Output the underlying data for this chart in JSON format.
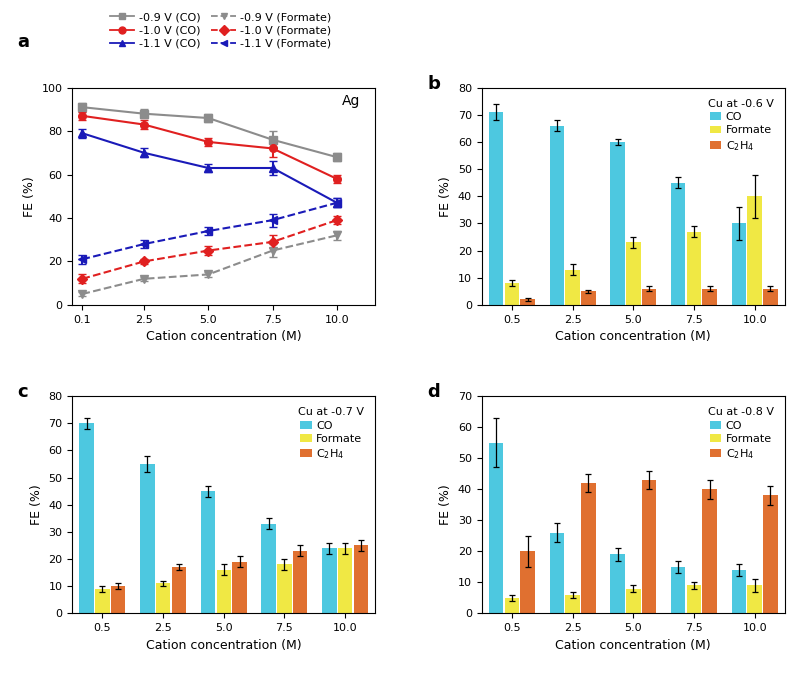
{
  "panel_a": {
    "x": [
      0.1,
      2.5,
      5.0,
      7.5,
      10.0
    ],
    "co_09": [
      91,
      88,
      86,
      76,
      68
    ],
    "co_10": [
      87,
      83,
      75,
      72,
      58
    ],
    "co_11": [
      79,
      70,
      63,
      63,
      47
    ],
    "formate_09": [
      5,
      12,
      14,
      25,
      32
    ],
    "formate_10": [
      12,
      20,
      25,
      29,
      39
    ],
    "formate_11": [
      21,
      28,
      34,
      39,
      47
    ],
    "co_09_err": [
      2,
      2,
      2,
      4,
      2
    ],
    "co_10_err": [
      2,
      2,
      2,
      4,
      2
    ],
    "co_11_err": [
      2,
      2,
      2,
      3,
      2
    ],
    "formate_09_err": [
      1,
      1,
      1,
      3,
      2
    ],
    "formate_10_err": [
      2,
      1,
      2,
      3,
      2
    ],
    "formate_11_err": [
      2,
      2,
      2,
      3,
      2
    ],
    "ylabel": "FE (%)",
    "xlabel": "Cation concentration (M)",
    "ylim": [
      0,
      100
    ],
    "xlim": [
      -0.3,
      11.5
    ],
    "xticks": [
      0.1,
      2.5,
      5.0,
      7.5,
      10.0
    ],
    "xticklabels": [
      "0.1",
      "2.5",
      "5.0",
      "7.5",
      "10.0"
    ],
    "yticks": [
      0,
      20,
      40,
      60,
      80,
      100
    ],
    "label": "a",
    "annotation": "Ag"
  },
  "panel_b": {
    "x_labels": [
      "0.5",
      "2.5",
      "5.0",
      "7.5",
      "10.0"
    ],
    "CO": [
      71,
      66,
      60,
      45,
      30
    ],
    "Formate": [
      8,
      13,
      23,
      27,
      40
    ],
    "C2H4": [
      2,
      5,
      6,
      6,
      6
    ],
    "CO_err": [
      3,
      2,
      1,
      2,
      6
    ],
    "Formate_err": [
      1,
      2,
      2,
      2,
      8
    ],
    "C2H4_err": [
      0.5,
      0.5,
      1,
      1,
      1
    ],
    "ylabel": "FE (%)",
    "xlabel": "Cation concentration (M)",
    "ylim": [
      0,
      80
    ],
    "yticks": [
      0,
      10,
      20,
      30,
      40,
      50,
      60,
      70,
      80
    ],
    "label": "b",
    "title": "Cu at -0.6 V"
  },
  "panel_c": {
    "x_labels": [
      "0.5",
      "2.5",
      "5.0",
      "7.5",
      "10.0"
    ],
    "CO": [
      70,
      55,
      45,
      33,
      24
    ],
    "Formate": [
      9,
      11,
      16,
      18,
      24
    ],
    "C2H4": [
      10,
      17,
      19,
      23,
      25
    ],
    "CO_err": [
      2,
      3,
      2,
      2,
      2
    ],
    "Formate_err": [
      1,
      1,
      2,
      2,
      2
    ],
    "C2H4_err": [
      1,
      1,
      2,
      2,
      2
    ],
    "ylabel": "FE (%)",
    "xlabel": "Cation concentration (M)",
    "ylim": [
      0,
      80
    ],
    "yticks": [
      0,
      10,
      20,
      30,
      40,
      50,
      60,
      70,
      80
    ],
    "label": "c",
    "title": "Cu at -0.7 V"
  },
  "panel_d": {
    "x_labels": [
      "0.5",
      "2.5",
      "5.0",
      "7.5",
      "10.0"
    ],
    "CO": [
      55,
      26,
      19,
      15,
      14
    ],
    "Formate": [
      5,
      6,
      8,
      9,
      9
    ],
    "C2H4": [
      20,
      42,
      43,
      40,
      38
    ],
    "CO_err": [
      8,
      3,
      2,
      2,
      2
    ],
    "Formate_err": [
      1,
      1,
      1,
      1,
      2
    ],
    "C2H4_err": [
      5,
      3,
      3,
      3,
      3
    ],
    "ylabel": "FE (%)",
    "xlabel": "Cation concentration (M)",
    "ylim": [
      0,
      70
    ],
    "yticks": [
      0,
      10,
      20,
      30,
      40,
      50,
      60,
      70
    ],
    "label": "d",
    "title": "Cu at -0.8 V"
  },
  "colors": {
    "gray_line": "#8c8c8c",
    "red_line": "#e02020",
    "blue_line": "#1a1ab8",
    "cyan_bar": "#4dc8e0",
    "yellow_bar": "#f0e844",
    "orange_bar": "#e07030"
  },
  "legend_entries": [
    [
      "-0.9 V (CO)",
      "solid",
      "gray",
      "s"
    ],
    [
      "-0.9 V (Formate)",
      "dashed",
      "gray",
      "v"
    ],
    [
      "-1.0 V (CO)",
      "solid",
      "red",
      "o"
    ],
    [
      "-1.0 V (Formate)",
      "dashed",
      "red",
      "D"
    ],
    [
      "-1.1 V (CO)",
      "solid",
      "blue",
      "^"
    ],
    [
      "-1.1 V (Formate)",
      "dashed",
      "blue",
      "<"
    ]
  ]
}
